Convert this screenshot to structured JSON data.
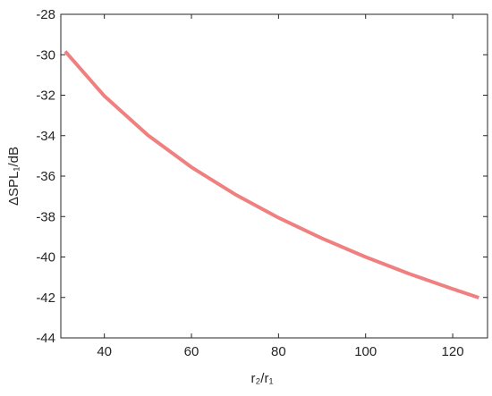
{
  "chart_data": {
    "type": "line",
    "xlabel": "r₂/r₁",
    "ylabel": "ΔSPL₁/dB",
    "x": [
      31,
      40,
      50,
      60,
      70,
      80,
      90,
      100,
      110,
      120,
      126
    ],
    "series": [
      {
        "color": "#f08080",
        "values": [
          -29.83,
          -32.04,
          -33.98,
          -35.56,
          -36.9,
          -38.06,
          -39.08,
          -40.0,
          -40.83,
          -41.58,
          -42.01
        ]
      }
    ],
    "xlim": [
      30,
      128
    ],
    "xticks": [
      40,
      60,
      80,
      100,
      120
    ],
    "ylim": [
      -44,
      -28
    ],
    "yticks": [
      -44,
      -42,
      -40,
      -38,
      -36,
      -34,
      -32,
      -30,
      -28
    ],
    "grid": false
  }
}
